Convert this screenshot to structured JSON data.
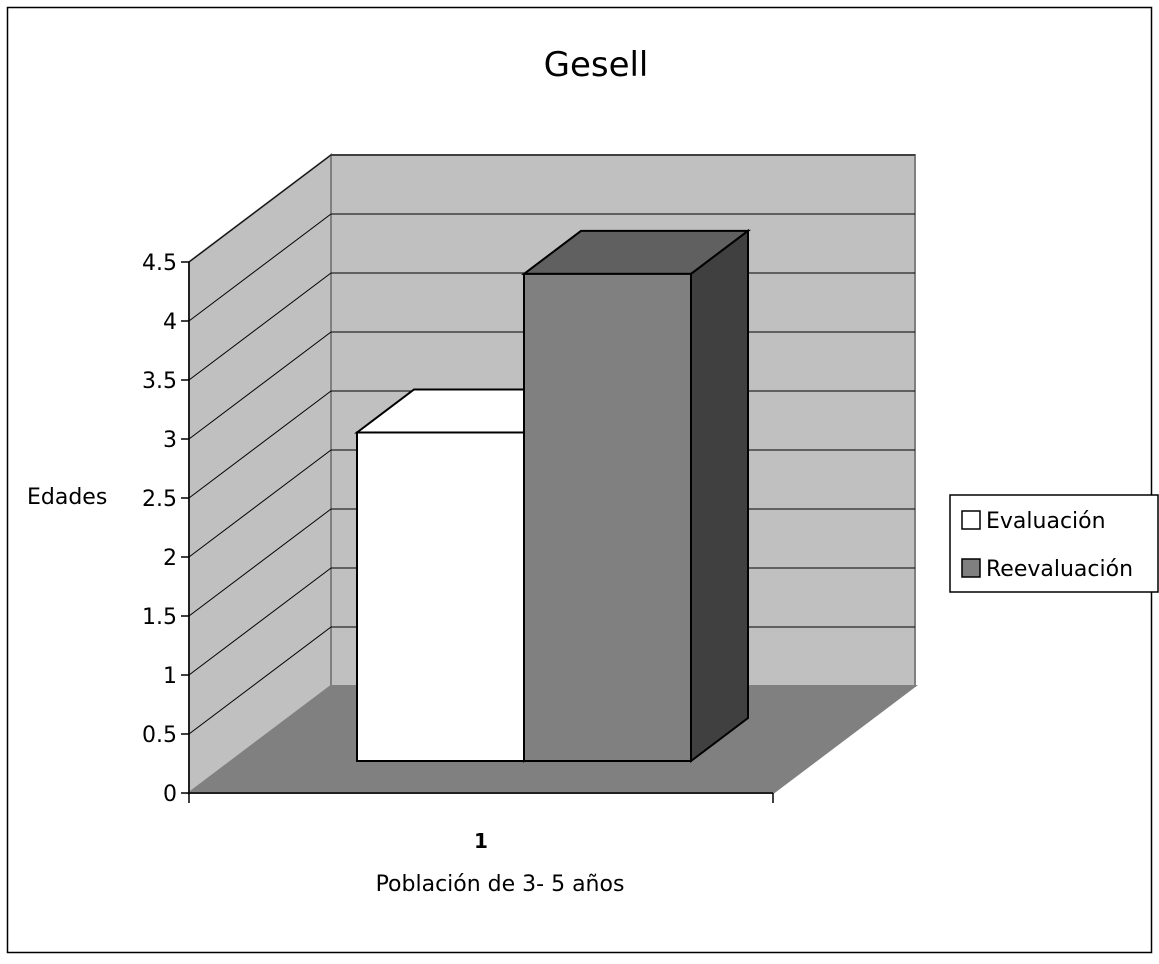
{
  "chart_data": {
    "type": "bar",
    "title": "Gesell",
    "xlabel": "Población de 3- 5 años",
    "ylabel": "Edades",
    "categories": [
      "1"
    ],
    "series": [
      {
        "name": "Evaluación",
        "values": [
          2.9
        ],
        "color": "#ffffff"
      },
      {
        "name": "Reevaluación",
        "values": [
          4.3
        ],
        "color": "#808080"
      }
    ],
    "ylim": [
      0,
      4.5
    ],
    "yticks": [
      "0",
      "0.5",
      "1",
      "1.5",
      "2",
      "2.5",
      "3",
      "3.5",
      "4",
      "4.5"
    ],
    "grid": true,
    "three_d": true,
    "legend_position": "right"
  }
}
